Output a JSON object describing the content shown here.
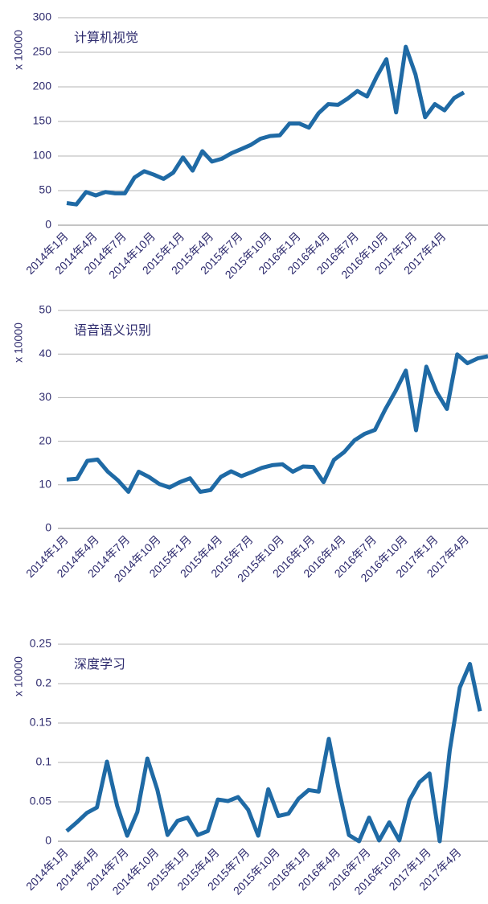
{
  "chart_data": [
    {
      "type": "line",
      "title": "计算机视觉",
      "ylabel": "x 10000",
      "color": "#1f6aa5",
      "grid": true,
      "categories": [
        "2014年1月",
        null,
        null,
        "2014年4月",
        null,
        null,
        "2014年7月",
        null,
        null,
        "2014年10月",
        null,
        null,
        "2015年1月",
        null,
        null,
        "2015年4月",
        null,
        null,
        "2015年7月",
        null,
        null,
        "2015年10月",
        null,
        null,
        "2016年1月",
        null,
        null,
        "2016年4月",
        null,
        null,
        "2016年7月",
        null,
        null,
        "2016年10月",
        null,
        null,
        "2017年1月",
        null,
        null,
        "2017年4月",
        null,
        null
      ],
      "values": [
        32,
        30,
        48,
        43,
        48,
        46,
        46,
        69,
        78,
        73,
        67,
        76,
        98,
        79,
        107,
        92,
        96,
        104,
        110,
        116,
        125,
        129,
        130,
        147,
        147,
        141,
        162,
        175,
        174,
        183,
        194,
        186,
        215,
        240,
        163,
        258,
        218,
        156,
        175,
        166,
        184,
        192
      ],
      "ylim": [
        0,
        300
      ],
      "yticks": [
        0,
        50,
        100,
        150,
        200,
        250,
        300
      ]
    },
    {
      "type": "line",
      "title": "语音语义识别",
      "ylabel": "x 10000",
      "color": "#1f6aa5",
      "grid": true,
      "categories": [
        "2014年1月",
        null,
        null,
        "2014年4月",
        null,
        null,
        "2014年7月",
        null,
        null,
        "2014年10月",
        null,
        null,
        "2015年1月",
        null,
        null,
        "2015年4月",
        null,
        null,
        "2015年7月",
        null,
        null,
        "2015年10月",
        null,
        null,
        "2016年1月",
        null,
        null,
        "2016年4月",
        null,
        null,
        "2016年7月",
        null,
        null,
        "2016年10月",
        null,
        null,
        "2017年1月",
        null,
        null,
        "2017年4月",
        null,
        null
      ],
      "values": [
        11.2,
        11.4,
        15.5,
        15.8,
        13,
        11,
        8.4,
        13,
        11.8,
        10.2,
        9.4,
        10.6,
        11.5,
        8.4,
        8.8,
        11.8,
        13.1,
        12,
        12.9,
        13.9,
        14.5,
        14.7,
        13,
        14.2,
        14.1,
        10.6,
        15.7,
        17.5,
        20.2,
        21.7,
        22.6,
        27.3,
        31.5,
        36.2,
        22.5,
        37.1,
        31.3,
        27.4,
        39.9,
        37.9,
        39,
        39.5
      ],
      "ylim": [
        0,
        50
      ],
      "yticks": [
        0,
        10,
        20,
        30,
        40,
        50
      ]
    },
    {
      "type": "line",
      "title": "深度学习",
      "ylabel": "x 10000",
      "color": "#1f6aa5",
      "grid": true,
      "categories": [
        "2014年1月",
        null,
        null,
        "2014年4月",
        null,
        null,
        "2014年7月",
        null,
        null,
        "2014年10月",
        null,
        null,
        "2015年1月",
        null,
        null,
        "2015年4月",
        null,
        null,
        "2015年7月",
        null,
        null,
        "2015年10月",
        null,
        null,
        "2016年1月",
        null,
        null,
        "2016年4月",
        null,
        null,
        "2016年7月",
        null,
        null,
        "2016年10月",
        null,
        null,
        "2017年1月",
        null,
        null,
        "2017年4月",
        null,
        null
      ],
      "values": [
        0.013,
        0.024,
        0.036,
        0.043,
        0.101,
        0.045,
        0.007,
        0.037,
        0.105,
        0.065,
        0.008,
        0.026,
        0.03,
        0.008,
        0.013,
        0.053,
        0.051,
        0.056,
        0.04,
        0.007,
        0.066,
        0.032,
        0.035,
        0.054,
        0.065,
        0.063,
        0.13,
        0.065,
        0.008,
        0,
        0.03,
        0.001,
        0.024,
        0.001,
        0.052,
        0.075,
        0.086,
        0,
        0.115,
        0.195,
        0.225,
        0.165
      ],
      "ylim": [
        0,
        0.25
      ],
      "yticks": [
        0,
        0.05,
        0.1,
        0.15,
        0.2,
        0.25
      ]
    }
  ]
}
